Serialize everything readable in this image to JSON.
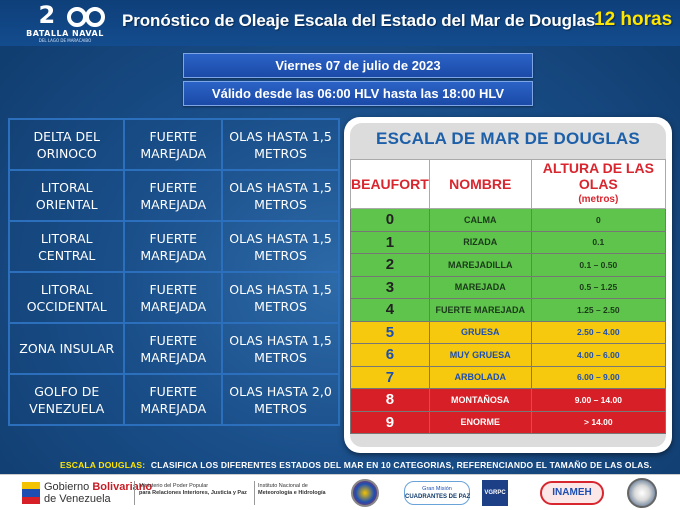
{
  "header": {
    "logo_number": "2",
    "logo_number_rest": "0",
    "logo_subtitle": "BATALLA NAVAL",
    "logo_subline": "DEL LAGO DE MARACAIBO",
    "title": "Pronóstico de Oleaje Escala del Estado del Mar de Douglas",
    "hours": "12 horas"
  },
  "banners": {
    "date": "Viernes 07 de julio de 2023",
    "validity": "Válido desde las 06:00 HLV hasta las 18:00 HLV"
  },
  "regions": [
    {
      "zone": "DELTA DEL ORINOCO",
      "state": "FUERTE MAREJADA",
      "waves": "OLAS HASTA 1,5 METROS"
    },
    {
      "zone": "LITORAL ORIENTAL",
      "state": "FUERTE MAREJADA",
      "waves": "OLAS HASTA 1,5 METROS"
    },
    {
      "zone": "LITORAL CENTRAL",
      "state": "FUERTE MAREJADA",
      "waves": "OLAS HASTA 1,5 METROS"
    },
    {
      "zone": "LITORAL OCCIDENTAL",
      "state": "FUERTE MAREJADA",
      "waves": "OLAS HASTA 1,5 METROS"
    },
    {
      "zone": "ZONA INSULAR",
      "state": "FUERTE MAREJADA",
      "waves": "OLAS HASTA 1,5 METROS"
    },
    {
      "zone": "GOLFO DE VENEZUELA",
      "state": "FUERTE MAREJADA",
      "waves": "OLAS HASTA 2,0 METROS"
    }
  ],
  "scale": {
    "title": "ESCALA  DE MAR DE DOUGLAS",
    "headers": {
      "beaufort": "BEAUFORT",
      "name": "NOMBRE",
      "height": "ALTURA DE LAS OLAS",
      "height_unit": "(metros)"
    },
    "rows": [
      {
        "level": "0",
        "name": "CALMA",
        "height": "0",
        "color": "green"
      },
      {
        "level": "1",
        "name": "RIZADA",
        "height": "0.1",
        "color": "green"
      },
      {
        "level": "2",
        "name": "MAREJADILLA",
        "height": "0.1 – 0.50",
        "color": "green"
      },
      {
        "level": "3",
        "name": "MAREJADA",
        "height": "0.5 – 1.25",
        "color": "green"
      },
      {
        "level": "4",
        "name": "FUERTE MAREJADA",
        "height": "1.25 – 2.50",
        "color": "green"
      },
      {
        "level": "5",
        "name": "GRUESA",
        "height": "2.50 – 4.00",
        "color": "yellow"
      },
      {
        "level": "6",
        "name": "MUY GRUESA",
        "height": "4.00 – 6.00",
        "color": "yellow"
      },
      {
        "level": "7",
        "name": "ARBOLADA",
        "height": "6.00 – 9.00",
        "color": "yellow"
      },
      {
        "level": "8",
        "name": "MONTAÑOSA",
        "height": "9.00 – 14.00",
        "color": "red"
      },
      {
        "level": "9",
        "name": "ENORME",
        "height": "> 14.00",
        "color": "red"
      }
    ]
  },
  "footnote": {
    "lead": "ESCALA DOUGLAS:",
    "text": "CLASIFICA LOS DIFERENTES  ESTADOS DEL MAR EN 10 CATEGORIAS, REFERENCIANDO  EL TAMAÑO DE LAS OLAS."
  },
  "footer": {
    "gob_line1_a": "Gobierno ",
    "gob_line1_b": "Bolivariano",
    "gob_line2": "de Venezuela",
    "ministry_line1": "Ministerio del Poder Popular",
    "ministry_line2": "para Relaciones Interiores, Justicia y Paz",
    "inst_line1": "Instituto Nacional de",
    "inst_line2": "Meteorología e Hidrología",
    "cuadrantes_line1": "Gran Misión",
    "cuadrantes_line2": "CUADRANTES DE PAZ",
    "vgrpc": "VGRPC",
    "inameh": "INAMEH"
  }
}
